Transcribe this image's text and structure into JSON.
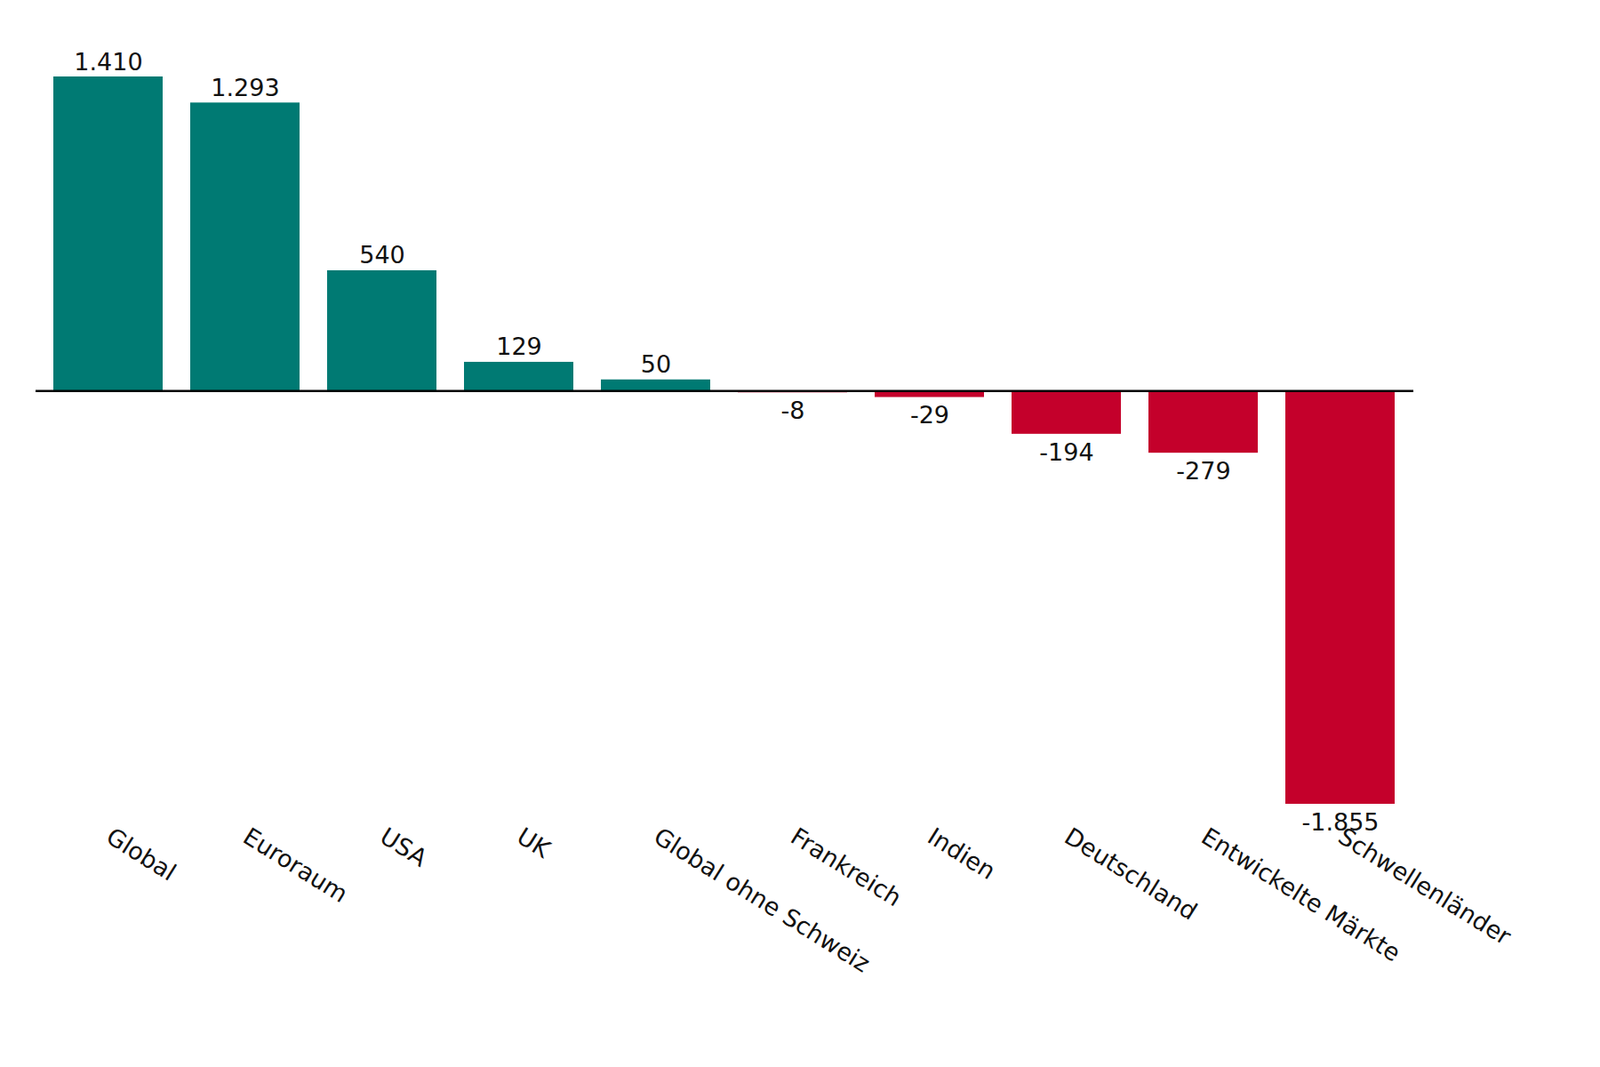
{
  "chart_data": {
    "type": "bar",
    "categories": [
      "Global",
      "Euroraum",
      "USA",
      "UK",
      "Global ohne Schweiz",
      "Frankreich",
      "Indien",
      "Deutschland",
      "Entwickelte Märkte",
      "Schwellenländer"
    ],
    "values": [
      1410,
      1293,
      540,
      129,
      50,
      -8,
      -29,
      -194,
      -279,
      -1855
    ],
    "value_labels": [
      "1.410",
      "1.293",
      "540",
      "129",
      "50",
      "-8",
      "-29",
      "-194",
      "-279",
      "-1.855"
    ],
    "colors": [
      "#007a73",
      "#007a73",
      "#007a73",
      "#007a73",
      "#007a73",
      "#c4002b",
      "#c4002b",
      "#c4002b",
      "#c4002b",
      "#c4002b"
    ],
    "ylim": [
      -1855,
      1410
    ],
    "grid": false,
    "data_labels": true,
    "tick_labels": "x"
  }
}
